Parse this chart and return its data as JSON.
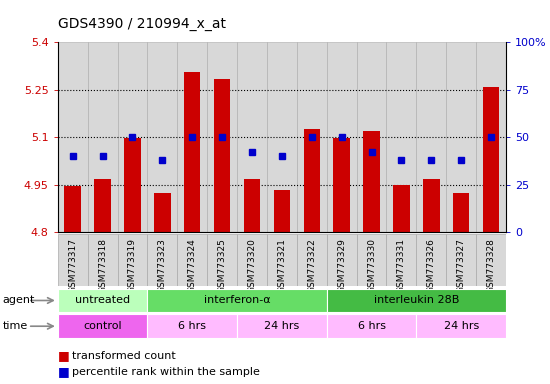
{
  "title": "GDS4390 / 210994_x_at",
  "samples": [
    "GSM773317",
    "GSM773318",
    "GSM773319",
    "GSM773323",
    "GSM773324",
    "GSM773325",
    "GSM773320",
    "GSM773321",
    "GSM773322",
    "GSM773329",
    "GSM773330",
    "GSM773331",
    "GSM773326",
    "GSM773327",
    "GSM773328"
  ],
  "red_values": [
    4.945,
    4.967,
    5.098,
    4.925,
    5.305,
    5.285,
    4.968,
    4.935,
    5.125,
    5.098,
    5.12,
    4.948,
    4.968,
    4.925,
    5.26
  ],
  "blue_values": [
    40,
    40,
    50,
    38,
    50,
    50,
    42,
    40,
    50,
    50,
    42,
    38,
    38,
    38,
    50
  ],
  "ylim_left": [
    4.8,
    5.4
  ],
  "ylim_right": [
    0,
    100
  ],
  "yticks_left": [
    4.8,
    4.95,
    5.1,
    5.25,
    5.4
  ],
  "yticks_right": [
    0,
    25,
    50,
    75,
    100
  ],
  "ytick_labels_left": [
    "4.8",
    "4.95",
    "5.1",
    "5.25",
    "5.4"
  ],
  "ytick_labels_right": [
    "0",
    "25",
    "50",
    "75",
    "100%"
  ],
  "hlines": [
    4.95,
    5.1,
    5.25
  ],
  "bar_color": "#cc0000",
  "dot_color": "#0000cc",
  "bar_width": 0.55,
  "agent_groups": [
    {
      "label": "untreated",
      "start": 0,
      "end": 2,
      "color": "#bbffbb"
    },
    {
      "label": "interferon-α",
      "start": 3,
      "end": 8,
      "color": "#66dd66"
    },
    {
      "label": "interleukin 28B",
      "start": 9,
      "end": 14,
      "color": "#44bb44"
    }
  ],
  "time_groups": [
    {
      "label": "control",
      "start": 0,
      "end": 2,
      "color": "#ee66ee"
    },
    {
      "label": "6 hrs",
      "start": 3,
      "end": 5,
      "color": "#ffbbff"
    },
    {
      "label": "24 hrs",
      "start": 6,
      "end": 8,
      "color": "#ffbbff"
    },
    {
      "label": "6 hrs",
      "start": 9,
      "end": 11,
      "color": "#ffbbff"
    },
    {
      "label": "24 hrs",
      "start": 12,
      "end": 14,
      "color": "#ffbbff"
    }
  ],
  "legend_red": "transformed count",
  "legend_blue": "percentile rank within the sample",
  "bg_color": "#ffffff",
  "col_bg": "#d8d8d8",
  "tick_color_left": "#cc0000",
  "tick_color_right": "#0000cc",
  "border_color": "#aaaaaa"
}
